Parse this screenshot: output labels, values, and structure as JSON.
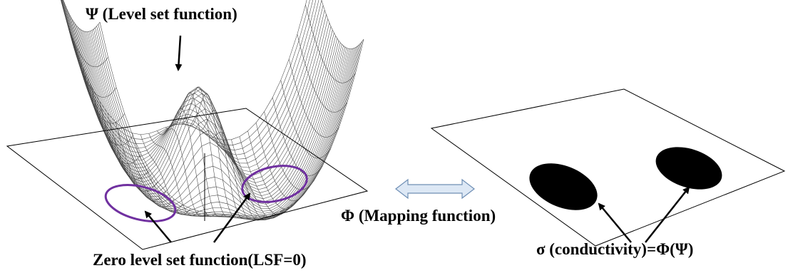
{
  "labels": {
    "psi": "Ψ (Level set function)",
    "zero_level": "Zero level set function(LSF=0)",
    "mapping": "Φ (Mapping function)",
    "sigma": "σ (conductivity)=Φ(Ψ)"
  }
}
